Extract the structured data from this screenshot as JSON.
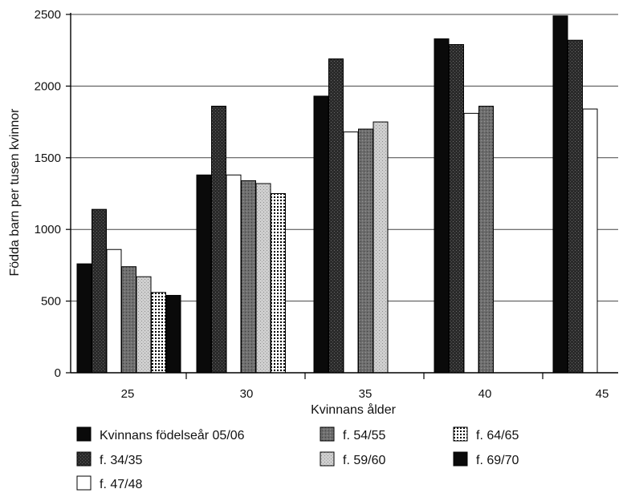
{
  "chart_data": {
    "type": "bar",
    "title": "",
    "xlabel": "Kvinnans ålder",
    "ylabel": "Födda barn per tusen kvinnor",
    "categories": [
      "25",
      "30",
      "35",
      "40",
      "45"
    ],
    "ylim": [
      0,
      2500
    ],
    "yticks": [
      0,
      500,
      1000,
      1500,
      2000,
      2500
    ],
    "grid": true,
    "legend_position": "bottom",
    "series": [
      {
        "name": "Kvinnans födelseår 05/06",
        "pattern": "solid-black",
        "values": [
          760,
          1380,
          1930,
          2330,
          2490
        ]
      },
      {
        "name": "f. 34/35",
        "pattern": "dark-speckle",
        "values": [
          1140,
          1860,
          2190,
          2290,
          2320
        ]
      },
      {
        "name": "f. 47/48",
        "pattern": "white",
        "values": [
          860,
          1380,
          1680,
          1810,
          1840
        ]
      },
      {
        "name": "f. 54/55",
        "pattern": "mid-gray",
        "values": [
          740,
          1340,
          1700,
          1860,
          null
        ]
      },
      {
        "name": "f. 59/60",
        "pattern": "light-gray",
        "values": [
          670,
          1320,
          1750,
          null,
          null
        ]
      },
      {
        "name": "f. 64/65",
        "pattern": "dot-grid",
        "values": [
          560,
          1250,
          null,
          null,
          null
        ]
      },
      {
        "name": "f. 69/70",
        "pattern": "solid-black",
        "values": [
          540,
          null,
          null,
          null,
          null
        ]
      }
    ]
  }
}
